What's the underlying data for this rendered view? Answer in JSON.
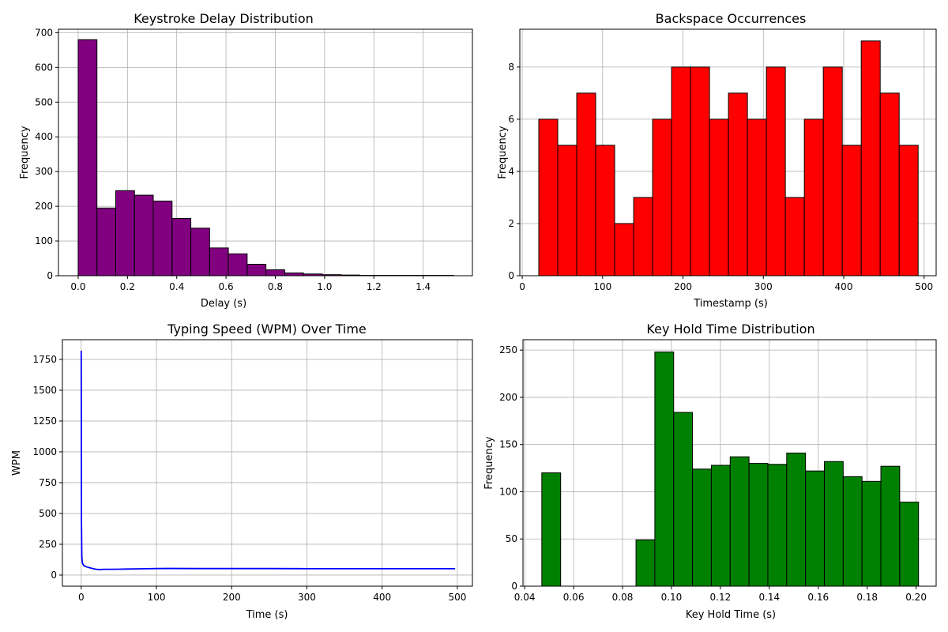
{
  "chart_data": [
    {
      "type": "bar",
      "title": "Keystroke Delay Distribution",
      "xlabel": "Delay (s)",
      "ylabel": "Frequency",
      "xlim": [
        -0.08,
        1.6
      ],
      "ylim": [
        0,
        710
      ],
      "xticks": [
        0.0,
        0.2,
        0.4,
        0.6,
        0.8,
        1.0,
        1.2,
        1.4
      ],
      "xticklabels": [
        "0.0",
        "0.2",
        "0.4",
        "0.6",
        "0.8",
        "1.0",
        "1.2",
        "1.4"
      ],
      "yticks": [
        0,
        100,
        200,
        300,
        400,
        500,
        600,
        700
      ],
      "yticklabels": [
        "0",
        "100",
        "200",
        "300",
        "400",
        "500",
        "600",
        "700"
      ],
      "bin_edges": [
        0.0,
        0.0762,
        0.1524,
        0.2286,
        0.3048,
        0.381,
        0.4572,
        0.5334,
        0.6096,
        0.6858,
        0.762,
        0.8382,
        0.9144,
        0.9906,
        1.0668,
        1.143,
        1.2192,
        1.2954,
        1.3716,
        1.4478,
        1.524
      ],
      "values": [
        680,
        195,
        245,
        232,
        215,
        165,
        137,
        80,
        63,
        33,
        17,
        8,
        5,
        3,
        2,
        1,
        1,
        1,
        1,
        1
      ],
      "color": "#800080",
      "grid": true
    },
    {
      "type": "bar",
      "title": "Backspace Occurrences",
      "xlabel": "Timestamp (s)",
      "ylabel": "Frequency",
      "xlim": [
        -3,
        515
      ],
      "ylim": [
        0,
        9.45
      ],
      "xticks": [
        0,
        100,
        200,
        300,
        400,
        500
      ],
      "xticklabels": [
        "0",
        "100",
        "200",
        "300",
        "400",
        "500"
      ],
      "yticks": [
        0,
        2,
        4,
        6,
        8
      ],
      "yticklabels": [
        "0",
        "2",
        "4",
        "6",
        "8"
      ],
      "bin_edges": [
        20.6,
        44.2,
        67.8,
        91.4,
        115.0,
        138.6,
        162.2,
        185.8,
        209.4,
        233.0,
        256.6,
        280.2,
        303.8,
        327.4,
        351.0,
        374.6,
        398.2,
        421.8,
        445.4,
        469.0,
        492.6
      ],
      "values": [
        6,
        5,
        7,
        5,
        2,
        3,
        6,
        8,
        8,
        6,
        7,
        6,
        8,
        3,
        6,
        8,
        5,
        9,
        7,
        5
      ],
      "color": "#ff0000",
      "grid": true
    },
    {
      "type": "line",
      "title": "Typing Speed (WPM) Over Time",
      "xlabel": "Time (s)",
      "ylabel": "WPM",
      "xlim": [
        -25,
        520
      ],
      "ylim": [
        -90,
        1910
      ],
      "xticks": [
        0,
        100,
        200,
        300,
        400,
        500
      ],
      "xticklabels": [
        "0",
        "100",
        "200",
        "300",
        "400",
        "500"
      ],
      "yticks": [
        0,
        250,
        500,
        750,
        1000,
        1250,
        1500,
        1750
      ],
      "yticklabels": [
        "0",
        "250",
        "500",
        "750",
        "1000",
        "1250",
        "1500",
        "1750"
      ],
      "x": [
        0,
        0.3,
        0.8,
        1.5,
        3,
        5,
        8,
        12,
        16,
        20,
        25,
        30,
        40,
        50,
        60,
        80,
        100,
        120,
        150,
        200,
        250,
        300,
        350,
        400,
        450,
        497
      ],
      "y": [
        1820,
        450,
        150,
        100,
        80,
        72,
        65,
        58,
        52,
        47,
        45,
        47,
        47,
        48,
        49,
        51,
        53,
        54,
        53,
        53,
        53,
        52,
        52,
        52,
        52,
        52
      ],
      "color": "#0000ff",
      "grid": true
    },
    {
      "type": "bar",
      "title": "Key Hold Time Distribution",
      "xlabel": "Key Hold Time (s)",
      "ylabel": "Frequency",
      "xlim": [
        0.0393,
        0.2082
      ],
      "ylim": [
        0,
        261
      ],
      "xticks": [
        0.04,
        0.06,
        0.08,
        0.1,
        0.12,
        0.14,
        0.16,
        0.18,
        0.2
      ],
      "xticklabels": [
        "0.04",
        "0.06",
        "0.08",
        "0.10",
        "0.12",
        "0.14",
        "0.16",
        "0.18",
        "0.20"
      ],
      "yticks": [
        0,
        50,
        100,
        150,
        200,
        250
      ],
      "yticklabels": [
        "0",
        "50",
        "100",
        "150",
        "200",
        "250"
      ],
      "bin_edges": [
        0.047,
        0.0547,
        0.0624,
        0.0701,
        0.0778,
        0.0855,
        0.0932,
        0.1009,
        0.1086,
        0.1163,
        0.124,
        0.1317,
        0.1394,
        0.1471,
        0.1548,
        0.1625,
        0.1702,
        0.1779,
        0.1856,
        0.1933,
        0.201
      ],
      "values": [
        120,
        0,
        0,
        0,
        0,
        49,
        248,
        184,
        124,
        128,
        137,
        130,
        129,
        141,
        122,
        132,
        116,
        111,
        127,
        89
      ],
      "color": "#008000",
      "grid": true
    }
  ]
}
